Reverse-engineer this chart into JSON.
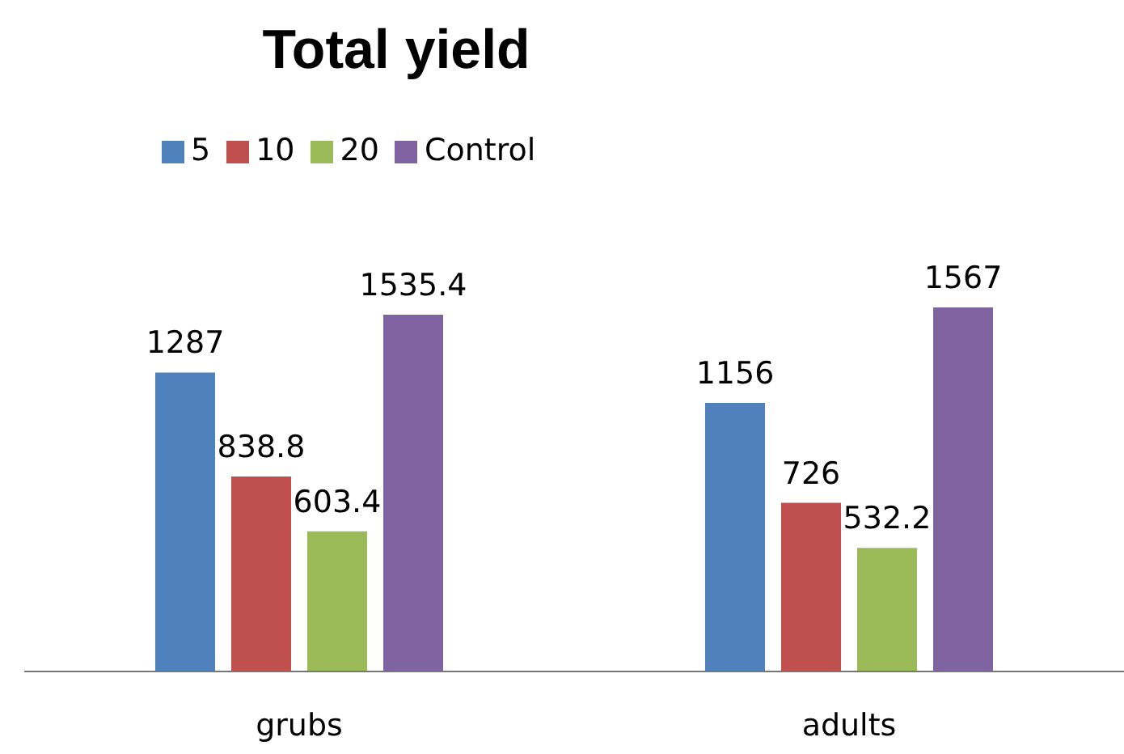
{
  "chart_data": {
    "type": "bar",
    "title": "Total yield",
    "categories": [
      "grubs",
      "adults"
    ],
    "series": [
      {
        "name": "5",
        "color": "#4f81bd",
        "values": [
          1287,
          1156
        ]
      },
      {
        "name": "10",
        "color": "#c0504d",
        "values": [
          838.8,
          726
        ]
      },
      {
        "name": "20",
        "color": "#9bbb59",
        "values": [
          603.4,
          532.2
        ]
      },
      {
        "name": "Control",
        "color": "#8064a2",
        "values": [
          1535.4,
          1567
        ]
      }
    ],
    "data_labels": true,
    "legend": "top",
    "grid": false,
    "tick_labels": "x"
  }
}
